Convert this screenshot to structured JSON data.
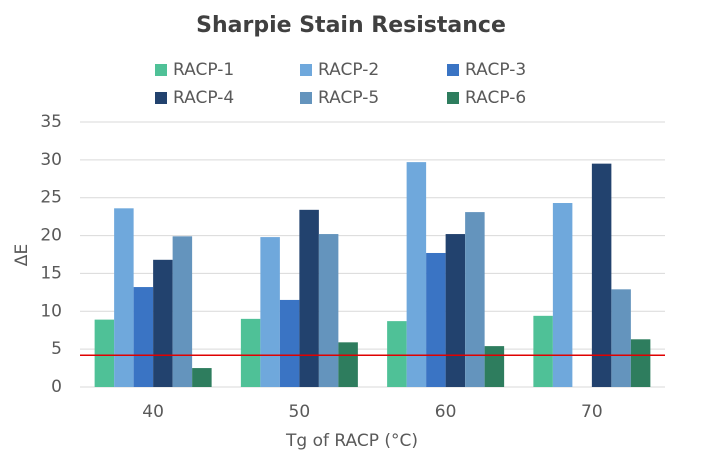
{
  "chart_data": {
    "type": "bar",
    "title": "Sharpie Stain Resistance",
    "x_label": "Tg of RACP (°C)",
    "y_label": "ΔE",
    "categories": [
      "40",
      "50",
      "60",
      "70"
    ],
    "series": [
      {
        "name": "RACP-1",
        "color": "#4fc197",
        "values": [
          8.9,
          9.0,
          8.7,
          9.4
        ]
      },
      {
        "name": "RACP-2",
        "color": "#6fa8dc",
        "values": [
          23.6,
          19.8,
          29.7,
          24.3
        ]
      },
      {
        "name": "RACP-3",
        "color": "#3a74c4",
        "values": [
          13.2,
          11.5,
          17.7,
          null
        ]
      },
      {
        "name": "RACP-4",
        "color": "#22426e",
        "values": [
          16.8,
          23.4,
          20.2,
          29.5
        ]
      },
      {
        "name": "RACP-5",
        "color": "#6494bd",
        "values": [
          19.9,
          20.2,
          23.1,
          12.9
        ]
      },
      {
        "name": "RACP-6",
        "color": "#2e7d5e",
        "values": [
          2.5,
          5.9,
          5.4,
          6.3
        ]
      }
    ],
    "reference_line": {
      "value": 4.2,
      "color": "#e00000"
    },
    "ylim": [
      0,
      35
    ],
    "yticks": [
      0,
      5,
      10,
      15,
      20,
      25,
      30,
      35
    ],
    "grid": true
  }
}
